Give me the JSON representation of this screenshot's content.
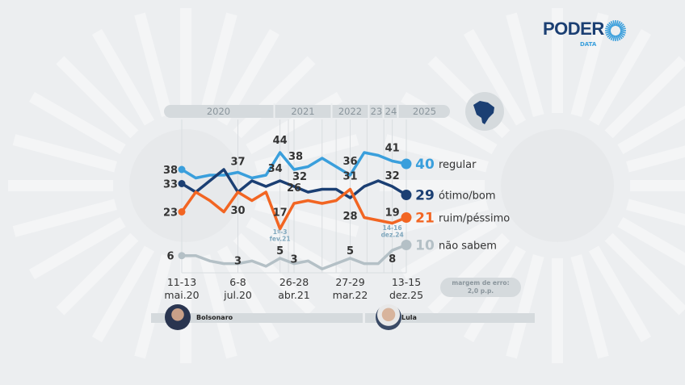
{
  "brand": {
    "name": "PODER",
    "sub": "DATA"
  },
  "colors": {
    "regular": "#3a9fdc",
    "otimo_bom": "#1b3f73",
    "ruim_pessimo": "#f26522",
    "nao_sabem": "#b4c0c6",
    "background": "#eceef0",
    "bar": "#d5dadd"
  },
  "chart_data": {
    "type": "line",
    "years": [
      "2020",
      "2021",
      "2022",
      "23",
      "24",
      "2025"
    ],
    "x_tick_labels": [
      {
        "index": 0,
        "days": "11-13",
        "month": "mai.20"
      },
      {
        "index": 4,
        "days": "6-8",
        "month": "jul.20"
      },
      {
        "index": 8,
        "days": "26-28",
        "month": "abr.21"
      },
      {
        "index": 12,
        "days": "27-29",
        "month": "mar.22"
      },
      {
        "index": 16,
        "days": "13-15",
        "month": "dez.25"
      }
    ],
    "series": [
      {
        "name": "regular",
        "values": [
          38,
          35,
          36,
          36,
          37,
          35,
          36,
          44,
          38,
          39,
          42,
          39,
          36,
          44,
          43,
          41,
          40
        ],
        "labeled": [
          0,
          4,
          7,
          8,
          12,
          15
        ]
      },
      {
        "name": "ótimo/bom",
        "values": [
          33,
          30,
          34,
          38,
          30,
          34,
          32,
          34,
          32,
          30,
          31,
          31,
          28,
          32,
          34,
          32,
          29
        ],
        "labeled": [
          0,
          4,
          7,
          8,
          12,
          15
        ]
      },
      {
        "name": "ruim/péssimo",
        "values": [
          23,
          30,
          27,
          23,
          30,
          27,
          30,
          17,
          26,
          27,
          26,
          27,
          31,
          21,
          20,
          19,
          21
        ],
        "labeled": [
          0,
          7,
          8,
          12,
          15
        ]
      },
      {
        "name": "não sabem",
        "values": [
          6,
          6,
          4,
          3,
          3,
          4,
          2,
          5,
          3,
          4,
          1,
          3,
          5,
          3,
          3,
          8,
          10
        ],
        "labeled": [
          0,
          4,
          7,
          8,
          12,
          15
        ]
      }
    ],
    "annotations": [
      {
        "index": 7,
        "lines": [
          "1º-3",
          "fev.21"
        ]
      },
      {
        "index": 15,
        "lines": [
          "14-16",
          "dez.24"
        ]
      }
    ],
    "legend": "right"
  },
  "footer": {
    "margin_label": "margem de erro:",
    "margin_value": "2,0 p.p.",
    "presidents": [
      "Bolsonaro",
      "Lula"
    ]
  }
}
